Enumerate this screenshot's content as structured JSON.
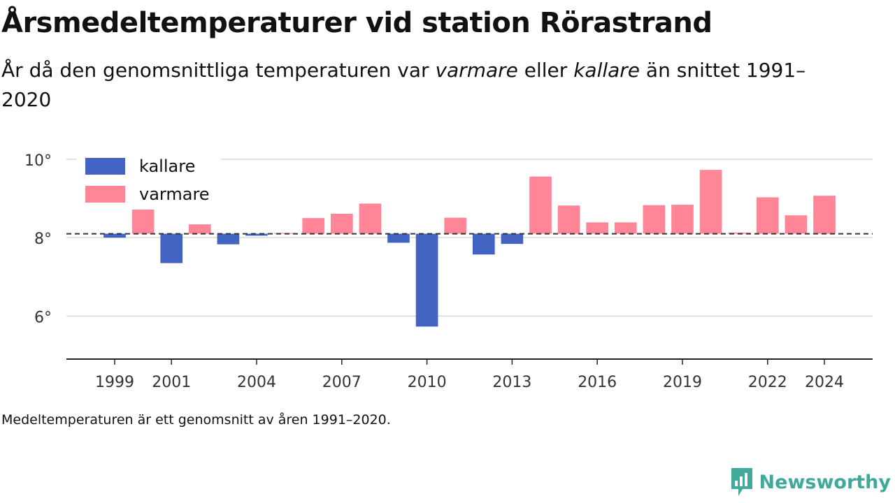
{
  "header": {
    "title": "Årsmedeltemperaturer vid station Rörastrand",
    "subtitle_parts": [
      "År då den genomsnittliga temperaturen var ",
      "varmare",
      " eller ",
      "kallare",
      " än snittet 1991–2020"
    ]
  },
  "footnote": "Medeltemperaturen är ett genomsnitt av åren 1991–2020.",
  "brand": {
    "name": "Newsworthy",
    "icon": "newsworthy-logo-icon",
    "color": "#40a99a"
  },
  "chart_data": {
    "type": "bar",
    "baseline": 8.1,
    "baseline_style": "dashed",
    "ylim": [
      4.9,
      10.5
    ],
    "yticks": [
      6,
      8,
      10
    ],
    "ytick_labels": [
      "6°",
      "8°",
      "10°"
    ],
    "xlim": [
      1997.3,
      2025.7
    ],
    "xticks": [
      1999,
      2001,
      2004,
      2007,
      2010,
      2013,
      2016,
      2019,
      2022,
      2024
    ],
    "xtick_labels": [
      "1999",
      "2001",
      "2004",
      "2007",
      "2010",
      "2013",
      "2016",
      "2019",
      "2022",
      "2024"
    ],
    "grid": true,
    "legend_position": "top-left",
    "legend": [
      {
        "key": "colder",
        "label": "kallare",
        "color": "#4263c2"
      },
      {
        "key": "warmer",
        "label": "varmare",
        "color": "#ff8597"
      }
    ],
    "x": [
      1999,
      2000,
      2001,
      2002,
      2003,
      2004,
      2005,
      2006,
      2007,
      2008,
      2009,
      2010,
      2011,
      2012,
      2013,
      2014,
      2015,
      2016,
      2017,
      2018,
      2019,
      2020,
      2021,
      2022,
      2023,
      2024
    ],
    "values": [
      8.0,
      8.83,
      7.35,
      8.34,
      7.83,
      8.05,
      8.12,
      8.5,
      8.61,
      8.87,
      7.87,
      5.73,
      8.51,
      7.57,
      7.84,
      9.56,
      8.82,
      8.39,
      8.39,
      8.83,
      8.84,
      9.73,
      8.13,
      9.03,
      8.57,
      9.07
    ]
  }
}
